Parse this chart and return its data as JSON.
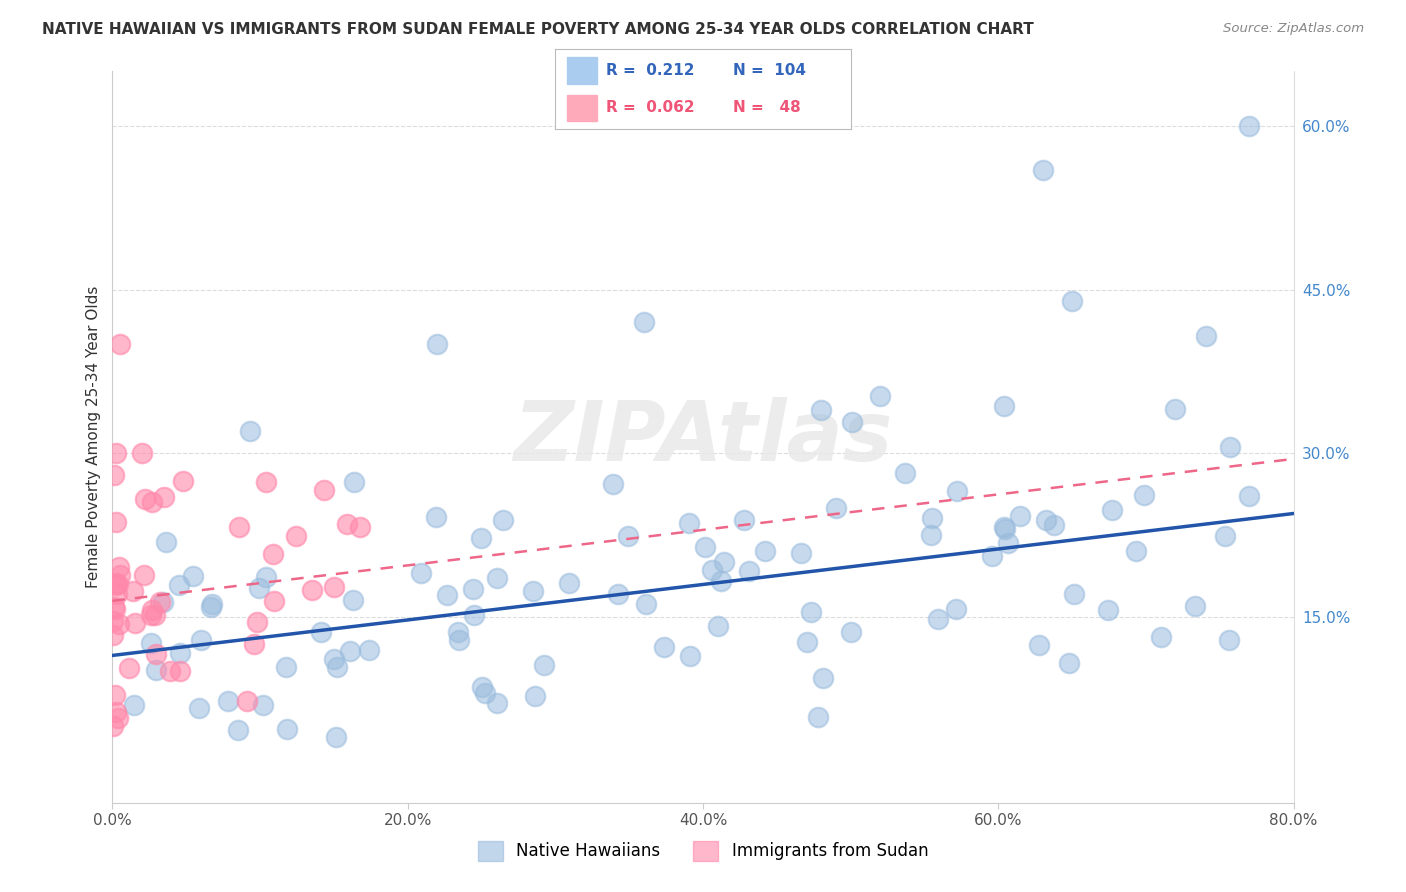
{
  "title": "NATIVE HAWAIIAN VS IMMIGRANTS FROM SUDAN FEMALE POVERTY AMONG 25-34 YEAR OLDS CORRELATION CHART",
  "source": "Source: ZipAtlas.com",
  "ylabel": "Female Poverty Among 25-34 Year Olds",
  "xlim": [
    0.0,
    0.8
  ],
  "ylim": [
    -0.02,
    0.65
  ],
  "xticks": [
    0.0,
    0.2,
    0.4,
    0.6,
    0.8
  ],
  "xticklabels": [
    "0.0%",
    "20.0%",
    "40.0%",
    "60.0%",
    "80.0%"
  ],
  "right_yticks": [
    0.15,
    0.3,
    0.45,
    0.6
  ],
  "right_yticklabels": [
    "15.0%",
    "30.0%",
    "45.0%",
    "60.0%"
  ],
  "grid_color": "#dddddd",
  "background_color": "#ffffff",
  "series1_name": "Native Hawaiians",
  "series1_color": "#99bbdd",
  "series1_R": 0.212,
  "series1_N": 104,
  "series2_name": "Immigrants from Sudan",
  "series2_color": "#ff88aa",
  "series2_R": 0.062,
  "series2_N": 48,
  "trend1_x0": 0.0,
  "trend1_x1": 0.8,
  "trend1_y0": 0.115,
  "trend1_y1": 0.245,
  "trend2_x0": 0.0,
  "trend2_x1": 0.8,
  "trend2_y0": 0.165,
  "trend2_y1": 0.295,
  "watermark_text": "ZIPAtlas",
  "legend_R1": "R =  0.212",
  "legend_N1": "N =  104",
  "legend_R2": "R =  0.062",
  "legend_N2": "N =   48"
}
